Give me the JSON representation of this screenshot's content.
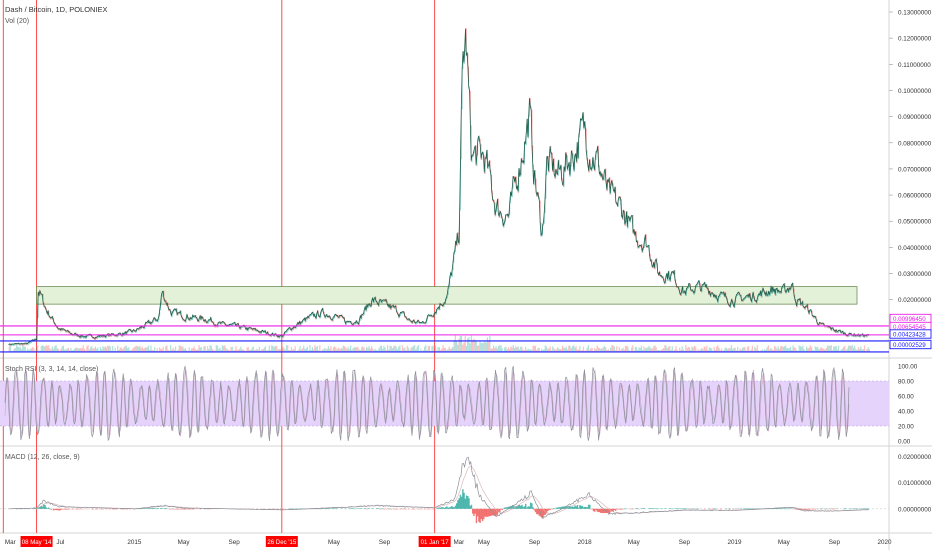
{
  "header": {
    "symbol_title": "Dash / Bitcoin, 1D, POLONIEX",
    "volume_label": "Vol (20)"
  },
  "colors": {
    "price_line": "#1f5f4d",
    "candle_up": "#26a69a",
    "candle_down": "#ef5350",
    "zone_fill": "#e4f1d9",
    "zone_stroke": "#6b8f55",
    "magenta_line": "#e91ee9",
    "blue_line": "#1a1aff",
    "red_vline": "#ff3b3b",
    "rsi_band": "#e6d3fb",
    "rsi_line": "#8c8f99",
    "macd_line": "#8c8f99",
    "axis_text": "#333333"
  },
  "chart_data": [
    {
      "type": "line",
      "name": "price",
      "x_ticks": [
        "Mar",
        "Jul",
        "2015",
        "May",
        "Sep",
        "May",
        "Sep",
        "Mar",
        "May",
        "Sep",
        "2018",
        "May",
        "Sep",
        "2019",
        "May",
        "Sep",
        "2020"
      ],
      "date_markers": [
        "08 May '14",
        "26 Dec '15",
        "01 Jan '17"
      ],
      "y_ticks": [
        "0.13000000",
        "0.12000000",
        "0.11000000",
        "0.10000000",
        "0.09000000",
        "0.08000000",
        "0.07000000",
        "0.06000000",
        "0.05000000",
        "0.04000000",
        "0.03000000",
        "0.02000000"
      ],
      "ylim": [
        0.0,
        0.13
      ],
      "levels": [
        {
          "value": "0.00996450",
          "color": "#e91ee9"
        },
        {
          "value": "0.00654545",
          "color": "#e91ee9"
        },
        {
          "value": "0.00423428",
          "color": "#1a1aff"
        },
        {
          "value": "0.00002529",
          "color": "#1a1aff"
        }
      ],
      "zone": {
        "from": 0.0183,
        "to": 0.025
      },
      "x": [
        "2014-03-01",
        "2014-04-15",
        "2014-05-08",
        "2014-05-12",
        "2014-05-20",
        "2014-06-01",
        "2014-07-01",
        "2014-08-01",
        "2014-09-01",
        "2014-10-01",
        "2014-11-01",
        "2014-12-01",
        "2015-01-01",
        "2015-02-01",
        "2015-03-01",
        "2015-03-10",
        "2015-04-01",
        "2015-05-01",
        "2015-06-01",
        "2015-07-01",
        "2015-08-01",
        "2015-09-01",
        "2015-10-01",
        "2015-11-01",
        "2015-12-01",
        "2015-12-26",
        "2016-01-15",
        "2016-02-01",
        "2016-03-01",
        "2016-04-01",
        "2016-05-01",
        "2016-06-01",
        "2016-07-01",
        "2016-08-01",
        "2016-09-01",
        "2016-10-01",
        "2016-11-01",
        "2016-12-01",
        "2017-01-01",
        "2017-02-01",
        "2017-03-01",
        "2017-03-10",
        "2017-03-18",
        "2017-04-01",
        "2017-05-01",
        "2017-06-01",
        "2017-07-01",
        "2017-08-01",
        "2017-08-20",
        "2017-09-01",
        "2017-09-20",
        "2017-10-01",
        "2017-11-01",
        "2017-12-01",
        "2018-01-01",
        "2018-01-20",
        "2018-02-01",
        "2018-03-01",
        "2018-04-01",
        "2018-05-01",
        "2018-06-01",
        "2018-07-01",
        "2018-08-01",
        "2018-09-01",
        "2018-10-01",
        "2018-11-01",
        "2018-12-01",
        "2019-01-01",
        "2019-02-01",
        "2019-03-01",
        "2019-04-01",
        "2019-05-01",
        "2019-05-20",
        "2019-06-01",
        "2019-07-01",
        "2019-08-01",
        "2019-09-01",
        "2019-10-01",
        "2019-11-01",
        "2019-11-25"
      ],
      "y": [
        0.003,
        0.0032,
        0.005,
        0.024,
        0.021,
        0.016,
        0.009,
        0.007,
        0.006,
        0.006,
        0.0065,
        0.007,
        0.008,
        0.0105,
        0.013,
        0.023,
        0.015,
        0.014,
        0.013,
        0.0125,
        0.0105,
        0.01,
        0.009,
        0.008,
        0.007,
        0.006,
        0.009,
        0.0105,
        0.013,
        0.015,
        0.014,
        0.0115,
        0.0125,
        0.02,
        0.018,
        0.016,
        0.012,
        0.011,
        0.016,
        0.0215,
        0.045,
        0.108,
        0.12,
        0.075,
        0.075,
        0.055,
        0.052,
        0.076,
        0.09,
        0.068,
        0.045,
        0.072,
        0.068,
        0.075,
        0.085,
        0.076,
        0.073,
        0.06,
        0.055,
        0.045,
        0.042,
        0.03,
        0.03,
        0.023,
        0.025,
        0.024,
        0.021,
        0.02,
        0.021,
        0.022,
        0.024,
        0.023,
        0.026,
        0.02,
        0.016,
        0.01,
        0.0085,
        0.007,
        0.0065,
        0.0063
      ]
    },
    {
      "type": "line",
      "name": "Stoch RSI (3, 3, 14, 14, close)",
      "y_ticks": [
        "100.00",
        "80.00",
        "60.00",
        "40.00",
        "20.00",
        "0.00"
      ],
      "ylim": [
        0,
        100
      ],
      "band": [
        20,
        80
      ],
      "cycles": 95
    },
    {
      "type": "line",
      "name": "MACD (12, 26, close, 9)",
      "y_ticks": [
        "0.02000000",
        "0.01000000",
        "0.00000000"
      ],
      "ylim": [
        -0.0085,
        0.0225
      ],
      "x": [
        "2014-03-01",
        "2014-05-08",
        "2014-05-25",
        "2014-07-01",
        "2015-01-01",
        "2015-03-15",
        "2015-05-01",
        "2016-01-01",
        "2016-08-15",
        "2017-01-01",
        "2017-02-20",
        "2017-03-20",
        "2017-04-20",
        "2017-06-01",
        "2017-08-25",
        "2017-09-20",
        "2017-10-20",
        "2018-01-10",
        "2018-03-01",
        "2018-05-01",
        "2018-09-01",
        "2019-01-01",
        "2019-05-20",
        "2019-06-20",
        "2019-09-01",
        "2019-11-25"
      ],
      "y": [
        0.0,
        0.0003,
        0.003,
        0.0008,
        0.0,
        0.0012,
        0.0003,
        -0.0004,
        0.0012,
        0.0004,
        0.004,
        0.0215,
        0.005,
        -0.003,
        0.006,
        -0.003,
        -0.0015,
        0.0055,
        -0.002,
        -0.0015,
        -0.0005,
        -0.0006,
        0.0006,
        -0.0008,
        -0.0008,
        -0.0003
      ]
    }
  ]
}
